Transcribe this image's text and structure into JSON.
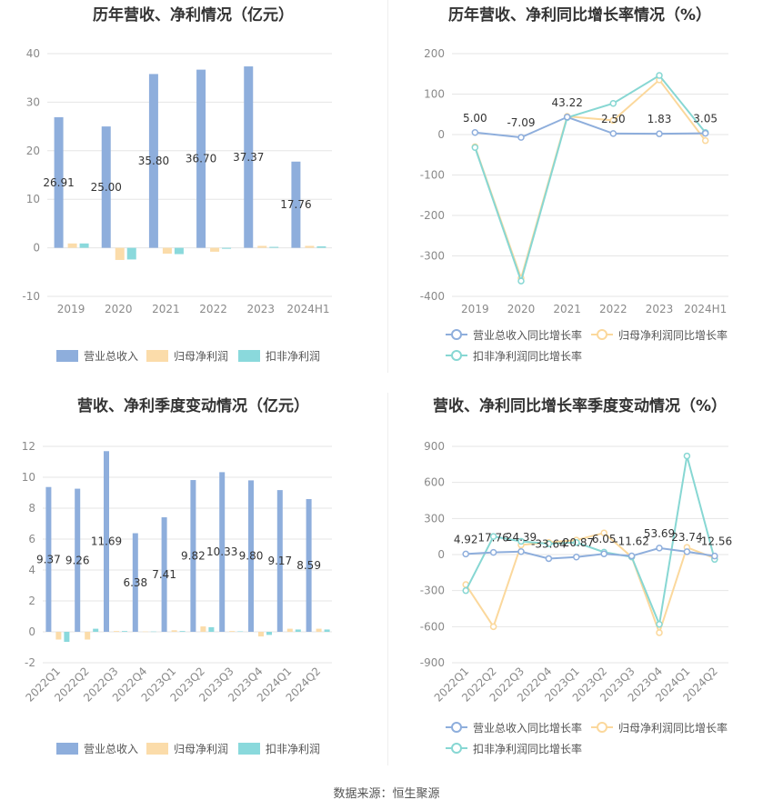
{
  "source_label": "数据来源：恒生聚源",
  "colors": {
    "revenue_bar": "#8eaedc",
    "netprofit_bar": "#fbdcaa",
    "deducted_bar": "#8ad9dc",
    "revenue_line": "#8eaedc",
    "netprofit_line": "#fbd89c",
    "deducted_line": "#87d7d3",
    "grid": "#e6e6e6"
  },
  "chart_data": [
    {
      "type": "bar",
      "title": "历年营收、净利情况（亿元）",
      "categories": [
        "2019",
        "2020",
        "2021",
        "2022",
        "2023",
        "2024H1"
      ],
      "ylim": [
        -10,
        40
      ],
      "yticks": [
        -10,
        0,
        10,
        20,
        30,
        40
      ],
      "grid": true,
      "legend_position": "bottom",
      "series": [
        {
          "name": "营业总收入",
          "values": [
            26.91,
            25.0,
            35.8,
            36.7,
            37.37,
            17.76
          ],
          "labels": [
            "26.91",
            "25.00",
            "35.80",
            "36.70",
            "37.37",
            "17.76"
          ]
        },
        {
          "name": "归母净利润",
          "values": [
            0.9,
            -2.5,
            -1.2,
            -0.8,
            0.4,
            0.4
          ]
        },
        {
          "name": "扣非净利润",
          "values": [
            0.9,
            -2.4,
            -1.3,
            -0.2,
            0.2,
            0.3
          ]
        }
      ]
    },
    {
      "type": "line",
      "title": "历年营收、净利同比增长率情况（%）",
      "categories": [
        "2019",
        "2020",
        "2021",
        "2022",
        "2023",
        "2024H1"
      ],
      "ylim": [
        -400,
        200
      ],
      "yticks": [
        -400,
        -300,
        -200,
        -100,
        0,
        100,
        200
      ],
      "grid": true,
      "legend_position": "bottom",
      "series": [
        {
          "name": "营业总收入同比增长率",
          "values": [
            5.0,
            -7.09,
            43.22,
            2.5,
            1.83,
            3.05
          ],
          "labels": [
            "5.00",
            "-7.09",
            "43.22",
            "2.50",
            "1.83",
            "3.05"
          ]
        },
        {
          "name": "归母净利润同比增长率",
          "values": [
            -30,
            -355,
            45,
            35,
            135,
            -15
          ]
        },
        {
          "name": "扣非净利润同比增长率",
          "values": [
            -32,
            -362,
            42,
            77,
            146,
            5
          ]
        }
      ]
    },
    {
      "type": "bar",
      "title": "营收、净利季度变动情况（亿元）",
      "categories": [
        "2022Q1",
        "2022Q2",
        "2022Q3",
        "2022Q4",
        "2023Q1",
        "2023Q2",
        "2023Q3",
        "2023Q4",
        "2024Q1",
        "2024Q2"
      ],
      "ylim": [
        -2,
        12
      ],
      "yticks": [
        -2,
        0,
        2,
        4,
        6,
        8,
        10,
        12
      ],
      "grid": true,
      "legend_position": "bottom",
      "series": [
        {
          "name": "营业总收入",
          "values": [
            9.37,
            9.26,
            11.69,
            6.38,
            7.41,
            9.82,
            10.33,
            9.8,
            9.17,
            8.59
          ],
          "labels": [
            "9.37",
            "9.26",
            "11.69",
            "6.38",
            "7.41",
            "9.82",
            "10.33",
            "9.80",
            "9.17",
            "8.59"
          ]
        },
        {
          "name": "归母净利润",
          "values": [
            -0.5,
            -0.5,
            0.05,
            0.02,
            0.1,
            0.35,
            0.05,
            -0.3,
            0.2,
            0.2
          ]
        },
        {
          "name": "扣非净利润",
          "values": [
            -0.65,
            0.2,
            0.05,
            0.02,
            0.05,
            0.3,
            0.03,
            -0.2,
            0.15,
            0.15
          ]
        }
      ]
    },
    {
      "type": "line",
      "title": "营收、净利同比增长率季度变动情况（%）",
      "categories": [
        "2022Q1",
        "2022Q2",
        "2022Q3",
        "2022Q4",
        "2023Q1",
        "2023Q2",
        "2023Q3",
        "2023Q4",
        "2024Q1",
        "2024Q2"
      ],
      "ylim": [
        -900,
        900
      ],
      "yticks": [
        -900,
        -600,
        -300,
        0,
        300,
        600,
        900
      ],
      "grid": true,
      "legend_position": "bottom",
      "series": [
        {
          "name": "营业总收入同比增长率",
          "values": [
            4.92,
            17.76,
            24.39,
            -33.64,
            -20.87,
            6.05,
            -11.62,
            53.69,
            23.74,
            -12.56
          ],
          "labels": [
            "4.92",
            "17.76",
            "24.39",
            "-33.64",
            "-20.87",
            "6.05",
            "-11.62",
            "53.69",
            "23.74",
            "-12.56"
          ]
        },
        {
          "name": "归母净利润同比增长率",
          "values": [
            -250,
            -600,
            80,
            100,
            120,
            180,
            -20,
            -650,
            60,
            -30
          ]
        },
        {
          "name": "扣非净利润同比增长率",
          "values": [
            -300,
            150,
            110,
            90,
            100,
            20,
            -20,
            -580,
            820,
            -40
          ]
        }
      ]
    }
  ]
}
